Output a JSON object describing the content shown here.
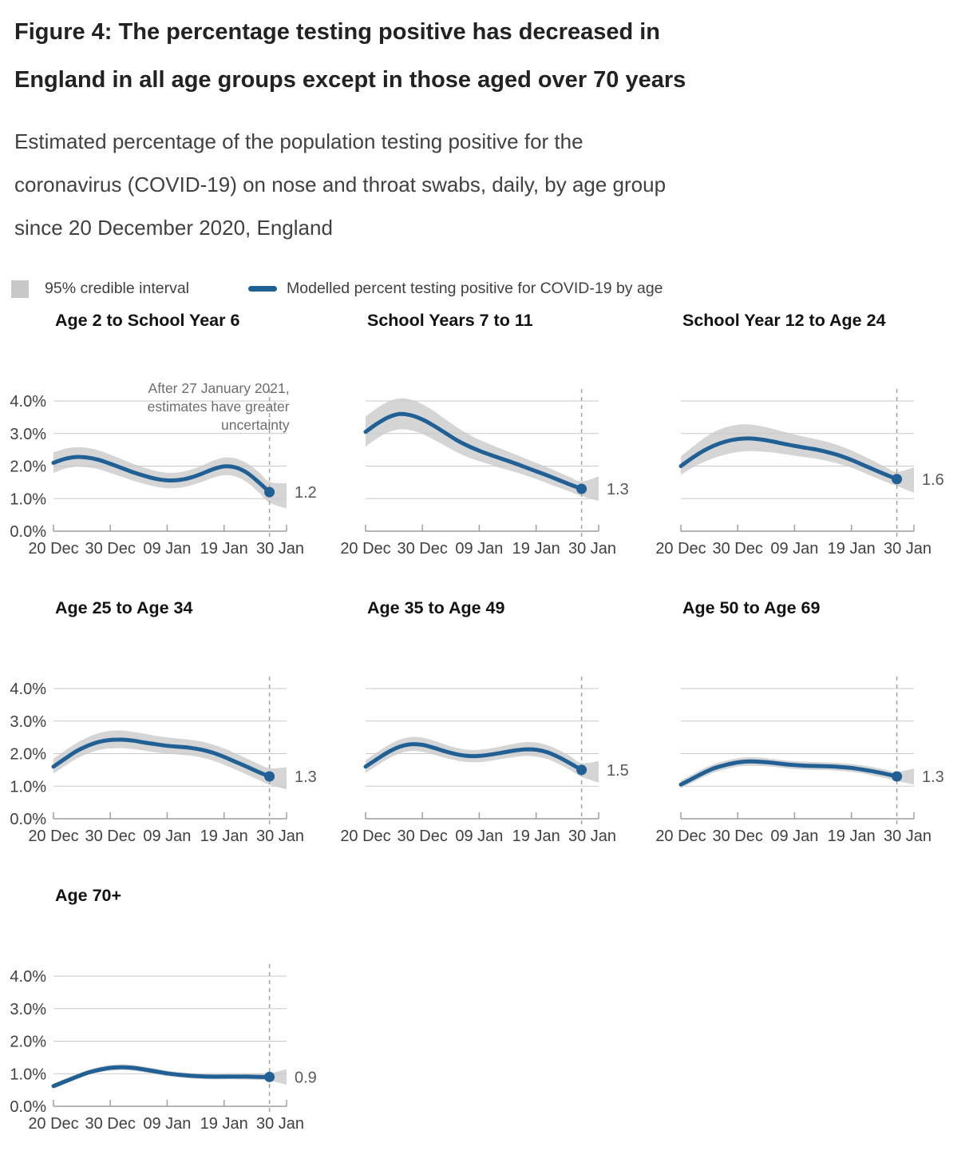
{
  "header": {
    "title_lines": [
      "Figure 4: The percentage testing positive has decreased in",
      "England in all age groups except in those aged over 70 years"
    ],
    "subtitle_lines": [
      "Estimated percentage of the population testing positive for the",
      "coronavirus (COVID-19) on nose and throat swabs, daily, by age group",
      "since 20 December 2020, England"
    ]
  },
  "legend": {
    "interval_label": "95% credible interval",
    "line_label": "Modelled percent testing positive for COVID-19 by age"
  },
  "colors": {
    "line": "#206095",
    "band": "#d5d5d5",
    "grid": "#c9c9c9",
    "axis": "#9e9e9e",
    "dash": "#a6a6a6",
    "swatch": "#c8c8c8"
  },
  "chart_data": {
    "type": "line",
    "x_tick_labels": [
      "20 Dec",
      "30 Dec",
      "09 Jan",
      "19 Jan",
      "30 Jan"
    ],
    "x_tick_days": [
      0,
      10,
      20,
      30,
      41
    ],
    "x_domain_days": [
      0,
      41
    ],
    "y_ticks": [
      "0.0%",
      "1.0%",
      "2.0%",
      "3.0%",
      "4.0%"
    ],
    "y_range_percent": [
      0,
      4
    ],
    "dashed_line_day": 38,
    "annotation_lines": [
      "After 27 January 2021,",
      "estimates have greater",
      "uncertainty"
    ],
    "days": [
      0,
      2,
      4,
      6,
      8,
      10,
      12,
      14,
      16,
      18,
      20,
      22,
      24,
      26,
      28,
      30,
      32,
      34,
      36,
      38
    ],
    "band_days": [
      0,
      2,
      4,
      6,
      8,
      10,
      12,
      14,
      16,
      18,
      20,
      22,
      24,
      26,
      28,
      30,
      32,
      34,
      36,
      38,
      41
    ],
    "panels": [
      {
        "title": "Age 2 to School Year 6",
        "show_y_axis": true,
        "has_annotation": true,
        "end_label": "1.2",
        "values": [
          2.1,
          2.22,
          2.28,
          2.26,
          2.19,
          2.07,
          1.94,
          1.81,
          1.7,
          1.61,
          1.56,
          1.57,
          1.64,
          1.76,
          1.9,
          1.99,
          1.96,
          1.8,
          1.52,
          1.2
        ],
        "upper": [
          2.42,
          2.53,
          2.58,
          2.56,
          2.48,
          2.35,
          2.21,
          2.07,
          1.95,
          1.85,
          1.8,
          1.81,
          1.88,
          2.01,
          2.16,
          2.26,
          2.24,
          2.09,
          1.83,
          1.52,
          1.47
        ],
        "lower": [
          1.79,
          1.92,
          1.98,
          1.96,
          1.9,
          1.79,
          1.67,
          1.55,
          1.45,
          1.37,
          1.32,
          1.33,
          1.4,
          1.51,
          1.64,
          1.72,
          1.68,
          1.51,
          1.21,
          0.88,
          0.7
        ]
      },
      {
        "title": "School Years 7 to 11",
        "show_y_axis": false,
        "has_annotation": false,
        "end_label": "1.3",
        "values": [
          3.05,
          3.3,
          3.5,
          3.6,
          3.56,
          3.43,
          3.24,
          3.02,
          2.8,
          2.62,
          2.47,
          2.34,
          2.22,
          2.1,
          1.97,
          1.84,
          1.71,
          1.57,
          1.43,
          1.3
        ],
        "upper": [
          3.52,
          3.78,
          3.98,
          4.08,
          4.04,
          3.9,
          3.69,
          3.44,
          3.2,
          2.99,
          2.81,
          2.66,
          2.52,
          2.38,
          2.24,
          2.1,
          1.96,
          1.81,
          1.66,
          1.53,
          1.68
        ],
        "lower": [
          2.6,
          2.85,
          3.04,
          3.13,
          3.1,
          2.99,
          2.81,
          2.62,
          2.43,
          2.27,
          2.15,
          2.04,
          1.93,
          1.83,
          1.72,
          1.6,
          1.47,
          1.34,
          1.21,
          1.08,
          0.93
        ]
      },
      {
        "title": "School Year 12 to Age 24",
        "show_y_axis": false,
        "has_annotation": false,
        "end_label": "1.6",
        "values": [
          2.0,
          2.25,
          2.47,
          2.64,
          2.76,
          2.83,
          2.85,
          2.82,
          2.76,
          2.69,
          2.62,
          2.56,
          2.5,
          2.42,
          2.32,
          2.19,
          2.04,
          1.89,
          1.74,
          1.6
        ],
        "upper": [
          2.3,
          2.58,
          2.85,
          3.06,
          3.2,
          3.27,
          3.28,
          3.23,
          3.15,
          3.06,
          2.97,
          2.89,
          2.82,
          2.73,
          2.62,
          2.48,
          2.32,
          2.15,
          1.97,
          1.82,
          1.96
        ],
        "lower": [
          1.73,
          1.95,
          2.12,
          2.26,
          2.36,
          2.43,
          2.46,
          2.45,
          2.42,
          2.37,
          2.32,
          2.27,
          2.22,
          2.15,
          2.06,
          1.95,
          1.81,
          1.66,
          1.52,
          1.39,
          1.18
        ]
      },
      {
        "title": "Age 25 to Age 34",
        "show_y_axis": true,
        "has_annotation": false,
        "end_label": "1.3",
        "values": [
          1.6,
          1.84,
          2.07,
          2.24,
          2.36,
          2.42,
          2.43,
          2.4,
          2.34,
          2.29,
          2.24,
          2.21,
          2.18,
          2.12,
          2.03,
          1.9,
          1.75,
          1.6,
          1.44,
          1.3
        ],
        "upper": [
          1.84,
          2.09,
          2.32,
          2.5,
          2.63,
          2.7,
          2.71,
          2.67,
          2.61,
          2.55,
          2.5,
          2.46,
          2.43,
          2.37,
          2.28,
          2.16,
          2.01,
          1.85,
          1.69,
          1.55,
          1.58
        ],
        "lower": [
          1.39,
          1.62,
          1.84,
          2.0,
          2.11,
          2.16,
          2.17,
          2.14,
          2.09,
          2.04,
          2.0,
          1.97,
          1.94,
          1.88,
          1.79,
          1.66,
          1.51,
          1.36,
          1.2,
          1.05,
          0.9
        ]
      },
      {
        "title": "Age 35 to Age 49",
        "show_y_axis": false,
        "has_annotation": false,
        "end_label": "1.5",
        "values": [
          1.6,
          1.83,
          2.05,
          2.21,
          2.29,
          2.27,
          2.18,
          2.07,
          1.98,
          1.93,
          1.93,
          1.97,
          2.03,
          2.09,
          2.13,
          2.12,
          2.04,
          1.89,
          1.7,
          1.5
        ],
        "upper": [
          1.8,
          2.04,
          2.26,
          2.43,
          2.51,
          2.49,
          2.4,
          2.28,
          2.18,
          2.12,
          2.12,
          2.16,
          2.23,
          2.3,
          2.35,
          2.34,
          2.26,
          2.11,
          1.92,
          1.71,
          1.77
        ],
        "lower": [
          1.41,
          1.63,
          1.85,
          2.01,
          2.08,
          2.06,
          1.97,
          1.87,
          1.79,
          1.74,
          1.74,
          1.78,
          1.84,
          1.89,
          1.93,
          1.91,
          1.83,
          1.68,
          1.49,
          1.29,
          1.11
        ]
      },
      {
        "title": "Age 50 to Age 69",
        "show_y_axis": false,
        "has_annotation": false,
        "end_label": "1.3",
        "values": [
          1.05,
          1.23,
          1.41,
          1.56,
          1.66,
          1.73,
          1.76,
          1.75,
          1.72,
          1.68,
          1.65,
          1.63,
          1.62,
          1.61,
          1.59,
          1.56,
          1.51,
          1.45,
          1.38,
          1.3
        ],
        "upper": [
          1.17,
          1.36,
          1.54,
          1.69,
          1.79,
          1.86,
          1.89,
          1.88,
          1.84,
          1.8,
          1.77,
          1.75,
          1.74,
          1.73,
          1.71,
          1.68,
          1.64,
          1.58,
          1.51,
          1.44,
          1.54
        ],
        "lower": [
          0.94,
          1.11,
          1.28,
          1.43,
          1.53,
          1.6,
          1.63,
          1.62,
          1.6,
          1.56,
          1.53,
          1.51,
          1.5,
          1.49,
          1.47,
          1.44,
          1.39,
          1.32,
          1.25,
          1.16,
          1.05
        ]
      },
      {
        "title": "Age 70+",
        "show_y_axis": true,
        "has_annotation": false,
        "end_label": "0.9",
        "values": [
          0.62,
          0.76,
          0.9,
          1.03,
          1.12,
          1.18,
          1.2,
          1.18,
          1.13,
          1.07,
          1.01,
          0.97,
          0.94,
          0.92,
          0.91,
          0.91,
          0.91,
          0.91,
          0.9,
          0.9
        ],
        "upper": [
          0.7,
          0.84,
          0.98,
          1.11,
          1.21,
          1.27,
          1.29,
          1.27,
          1.22,
          1.16,
          1.1,
          1.05,
          1.02,
          1.0,
          0.99,
          0.99,
          1.0,
          1.0,
          1.0,
          1.01,
          1.14
        ],
        "lower": [
          0.54,
          0.68,
          0.82,
          0.95,
          1.04,
          1.09,
          1.11,
          1.09,
          1.04,
          0.98,
          0.93,
          0.89,
          0.86,
          0.84,
          0.83,
          0.83,
          0.83,
          0.82,
          0.81,
          0.79,
          0.66
        ]
      }
    ]
  }
}
